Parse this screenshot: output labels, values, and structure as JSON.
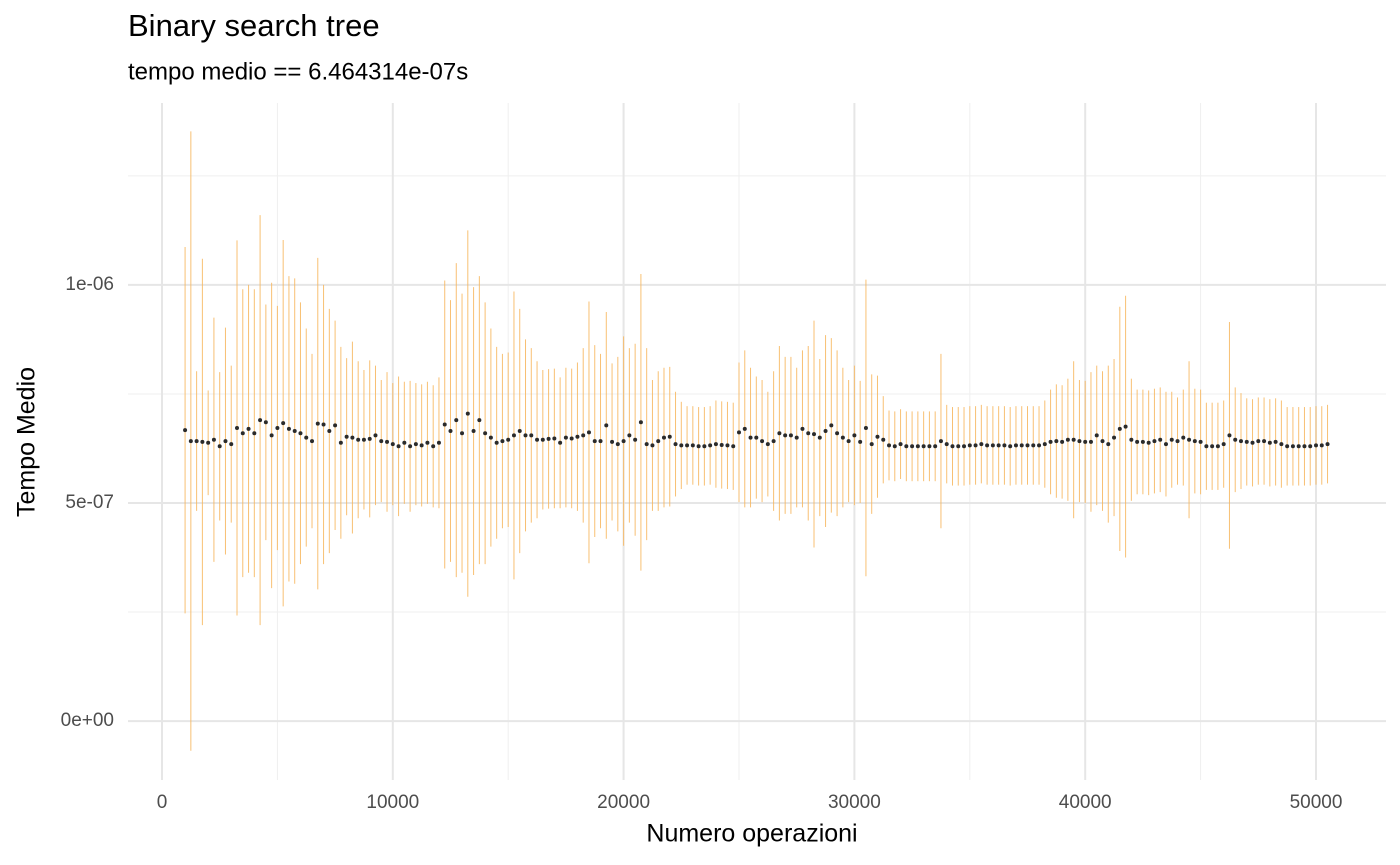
{
  "chart_data": {
    "type": "scatter",
    "title": "Binary search tree",
    "subtitle": "tempo medio == 6.464314e-07s",
    "x_label": "Numero operazioni",
    "y_label": "Tempo Medio",
    "color": "#2b2b2b",
    "error_color": "#f7b55a",
    "grid": true,
    "xlim": [
      -1473,
      53033
    ],
    "ylim": [
      -1.35e-07,
      1.417e-06
    ],
    "xticks": [
      0,
      10000,
      20000,
      30000,
      40000,
      50000
    ],
    "yticks": [
      {
        "value": 0,
        "label": "0e+00"
      },
      {
        "value": 5e-07,
        "label": "5e-07"
      },
      {
        "value": 1e-06,
        "label": "1e-06"
      }
    ],
    "x": [
      1000,
      1250,
      1500,
      1750,
      2000,
      2250,
      2500,
      2750,
      3000,
      3250,
      3500,
      3750,
      4000,
      4250,
      4500,
      4750,
      5000,
      5250,
      5500,
      5750,
      6000,
      6250,
      6500,
      6750,
      7000,
      7250,
      7500,
      7750,
      8000,
      8250,
      8500,
      8750,
      9000,
      9250,
      9500,
      9750,
      10000,
      10250,
      10500,
      10750,
      11000,
      11250,
      11500,
      11750,
      12000,
      12250,
      12500,
      12750,
      13000,
      13250,
      13500,
      13750,
      14000,
      14250,
      14500,
      14750,
      15000,
      15250,
      15500,
      15750,
      16000,
      16250,
      16500,
      16750,
      17000,
      17250,
      17500,
      17750,
      18000,
      18250,
      18500,
      18750,
      19000,
      19250,
      19500,
      19750,
      20000,
      20250,
      20500,
      20750,
      21000,
      21250,
      21500,
      21750,
      22000,
      22250,
      22500,
      22750,
      23000,
      23250,
      23500,
      23750,
      24000,
      24250,
      24500,
      24750,
      25000,
      25250,
      25500,
      25750,
      26000,
      26250,
      26500,
      26750,
      27000,
      27250,
      27500,
      27750,
      28000,
      28250,
      28500,
      28750,
      29000,
      29250,
      29500,
      29750,
      30000,
      30250,
      30500,
      30750,
      31000,
      31250,
      31500,
      31750,
      32000,
      32250,
      32500,
      32750,
      33000,
      33250,
      33500,
      33750,
      34000,
      34250,
      34500,
      34750,
      35000,
      35250,
      35500,
      35750,
      36000,
      36250,
      36500,
      36750,
      37000,
      37250,
      37500,
      37750,
      38000,
      38250,
      38500,
      38750,
      39000,
      39250,
      39500,
      39750,
      40000,
      40250,
      40500,
      40750,
      41000,
      41250,
      41500,
      41750,
      42000,
      42250,
      42500,
      42750,
      43000,
      43250,
      43500,
      43750,
      44000,
      44250,
      44500,
      44750,
      45000,
      45250,
      45500,
      45750,
      46000,
      46250,
      46500,
      46750,
      47000,
      47250,
      47500,
      47750,
      48000,
      48250,
      48500,
      48750,
      49000,
      49250,
      49500,
      49750,
      50000,
      50250,
      50500
    ],
    "values": [
      6.67e-07,
      6.42e-07,
      6.42e-07,
      6.4e-07,
      6.38e-07,
      6.45e-07,
      6.3e-07,
      6.42e-07,
      6.35e-07,
      6.72e-07,
      6.6e-07,
      6.7e-07,
      6.6e-07,
      6.9e-07,
      6.85e-07,
      6.55e-07,
      6.72e-07,
      6.83e-07,
      6.7e-07,
      6.65e-07,
      6.6e-07,
      6.5e-07,
      6.42e-07,
      6.82e-07,
      6.8e-07,
      6.65e-07,
      6.78e-07,
      6.38e-07,
      6.52e-07,
      6.5e-07,
      6.45e-07,
      6.45e-07,
      6.47e-07,
      6.55e-07,
      6.42e-07,
      6.4e-07,
      6.35e-07,
      6.3e-07,
      6.38e-07,
      6.3e-07,
      6.35e-07,
      6.32e-07,
      6.38e-07,
      6.3e-07,
      6.38e-07,
      6.8e-07,
      6.65e-07,
      6.9e-07,
      6.6e-07,
      7.05e-07,
      6.65e-07,
      6.9e-07,
      6.6e-07,
      6.5e-07,
      6.38e-07,
      6.42e-07,
      6.45e-07,
      6.55e-07,
      6.65e-07,
      6.55e-07,
      6.55e-07,
      6.45e-07,
      6.45e-07,
      6.47e-07,
      6.48e-07,
      6.38e-07,
      6.5e-07,
      6.48e-07,
      6.52e-07,
      6.55e-07,
      6.62e-07,
      6.42e-07,
      6.42e-07,
      6.78e-07,
      6.4e-07,
      6.35e-07,
      6.42e-07,
      6.55e-07,
      6.45e-07,
      6.85e-07,
      6.35e-07,
      6.32e-07,
      6.42e-07,
      6.5e-07,
      6.52e-07,
      6.35e-07,
      6.32e-07,
      6.32e-07,
      6.32e-07,
      6.3e-07,
      6.3e-07,
      6.32e-07,
      6.35e-07,
      6.33e-07,
      6.32e-07,
      6.3e-07,
      6.62e-07,
      6.7e-07,
      6.5e-07,
      6.5e-07,
      6.42e-07,
      6.35e-07,
      6.42e-07,
      6.6e-07,
      6.55e-07,
      6.55e-07,
      6.5e-07,
      6.7e-07,
      6.6e-07,
      6.58e-07,
      6.5e-07,
      6.65e-07,
      6.78e-07,
      6.6e-07,
      6.5e-07,
      6.42e-07,
      6.55e-07,
      6.4e-07,
      6.72e-07,
      6.35e-07,
      6.52e-07,
      6.45e-07,
      6.32e-07,
      6.3e-07,
      6.35e-07,
      6.3e-07,
      6.3e-07,
      6.3e-07,
      6.3e-07,
      6.3e-07,
      6.3e-07,
      6.42e-07,
      6.35e-07,
      6.3e-07,
      6.3e-07,
      6.3e-07,
      6.32e-07,
      6.32e-07,
      6.35e-07,
      6.32e-07,
      6.32e-07,
      6.32e-07,
      6.32e-07,
      6.3e-07,
      6.32e-07,
      6.32e-07,
      6.32e-07,
      6.32e-07,
      6.32e-07,
      6.35e-07,
      6.4e-07,
      6.42e-07,
      6.4e-07,
      6.45e-07,
      6.45e-07,
      6.42e-07,
      6.4e-07,
      6.4e-07,
      6.55e-07,
      6.42e-07,
      6.35e-07,
      6.5e-07,
      6.7e-07,
      6.75e-07,
      6.45e-07,
      6.4e-07,
      6.4e-07,
      6.38e-07,
      6.42e-07,
      6.45e-07,
      6.35e-07,
      6.45e-07,
      6.42e-07,
      6.5e-07,
      6.45e-07,
      6.42e-07,
      6.4e-07,
      6.3e-07,
      6.3e-07,
      6.3e-07,
      6.35e-07,
      6.55e-07,
      6.45e-07,
      6.42e-07,
      6.4e-07,
      6.38e-07,
      6.42e-07,
      6.42e-07,
      6.38e-07,
      6.4e-07,
      6.35e-07,
      6.3e-07,
      6.3e-07,
      6.3e-07,
      6.3e-07,
      6.3e-07,
      6.32e-07,
      6.32e-07,
      6.35e-07
    ],
    "errors": [
      4.2e-07,
      7.1e-07,
      1.6e-07,
      4.2e-07,
      1.2e-07,
      2.8e-07,
      1.7e-07,
      2.6e-07,
      1.8e-07,
      4.3e-07,
      3.3e-07,
      3.3e-07,
      3.3e-07,
      4.7e-07,
      2.7e-07,
      3.5e-07,
      2.8e-07,
      4.2e-07,
      3.5e-07,
      3.5e-07,
      3e-07,
      2.5e-07,
      2e-07,
      3.8e-07,
      3.2e-07,
      2.8e-07,
      2.4e-07,
      2.2e-07,
      1.8e-07,
      2.2e-07,
      1.8e-07,
      1.6e-07,
      1.8e-07,
      1.6e-07,
      1.4e-07,
      1.6e-07,
      1.4e-07,
      1.6e-07,
      1.4e-07,
      1.5e-07,
      1.4e-07,
      1.4e-07,
      1.4e-07,
      1.4e-07,
      1.5e-07,
      3.3e-07,
      3e-07,
      3.6e-07,
      3.2e-07,
      4.2e-07,
      3.3e-07,
      3.3e-07,
      3e-07,
      2.5e-07,
      2.2e-07,
      2e-07,
      2e-07,
      3.3e-07,
      2.8e-07,
      2.2e-07,
      2e-07,
      1.8e-07,
      1.6e-07,
      1.6e-07,
      1.6e-07,
      1.5e-07,
      1.6e-07,
      1.6e-07,
      1.7e-07,
      2e-07,
      3e-07,
      2.2e-07,
      2e-07,
      2.6e-07,
      1.8e-07,
      2e-07,
      2.4e-07,
      2e-07,
      2.2e-07,
      3.4e-07,
      2.2e-07,
      1.5e-07,
      1.6e-07,
      1.6e-07,
      1.6e-07,
      1.2e-07,
      1e-07,
      9e-08,
      9e-08,
      9e-08,
      9e-08,
      9e-08,
      1e-07,
      1e-07,
      1e-07,
      1e-07,
      1.6e-07,
      1.8e-07,
      1.6e-07,
      1.4e-07,
      1.4e-07,
      1.2e-07,
      1.6e-07,
      2e-07,
      1.8e-07,
      1.8e-07,
      1.6e-07,
      1.8e-07,
      2e-07,
      2.6e-07,
      1.8e-07,
      2.2e-07,
      2e-07,
      1.9e-07,
      1.6e-07,
      1.4e-07,
      1.6e-07,
      1.4e-07,
      3.4e-07,
      1.6e-07,
      1.4e-07,
      1e-07,
      8e-08,
      8e-08,
      8e-08,
      8e-08,
      8e-08,
      8e-08,
      8e-08,
      8e-08,
      8e-08,
      2e-07,
      9e-08,
      9e-08,
      9e-08,
      9e-08,
      9e-08,
      9e-08,
      9e-08,
      9e-08,
      9e-08,
      9e-08,
      9e-08,
      9e-08,
      9e-08,
      9e-08,
      9e-08,
      9e-08,
      9e-08,
      1e-07,
      1.2e-07,
      1.3e-07,
      1.3e-07,
      1.4e-07,
      1.8e-07,
      1.4e-07,
      1.4e-07,
      1.6e-07,
      1.6e-07,
      1.6e-07,
      1.8e-07,
      1.8e-07,
      2.8e-07,
      3e-07,
      1.4e-07,
      1.2e-07,
      1.2e-07,
      1.2e-07,
      1.2e-07,
      1.2e-07,
      1.2e-07,
      1.1e-07,
      1e-07,
      1.1e-07,
      1.8e-07,
      1.2e-07,
      1.2e-07,
      1e-07,
      1e-07,
      1e-07,
      1e-07,
      2.6e-07,
      1.2e-07,
      1.1e-07,
      1e-07,
      1e-07,
      1e-07,
      1e-07,
      1e-07,
      1e-07,
      1e-07,
      9e-08,
      9e-08,
      9e-08,
      9e-08,
      9e-08,
      9e-08,
      9e-08,
      9e-08
    ]
  }
}
